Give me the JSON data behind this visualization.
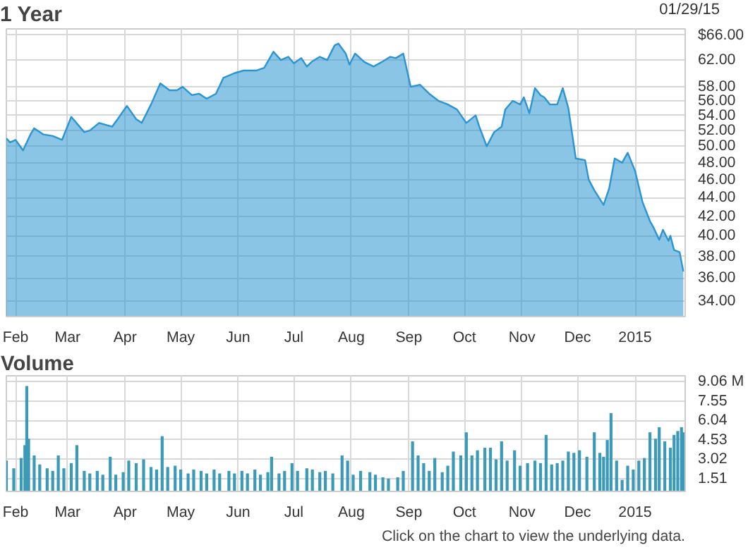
{
  "chart_data": [
    {
      "type": "area",
      "title": "1 Year",
      "annotations": [
        "01/29/15"
      ],
      "log": true,
      "grid": true,
      "color": "#2a95d2",
      "x": [
        "2014-01-27",
        "2014-01-29",
        "2014-02-01",
        "2014-02-05",
        "2014-02-09",
        "2014-02-11",
        "2014-02-16",
        "2014-02-21",
        "2014-02-26",
        "2014-03-03",
        "2014-03-10",
        "2014-03-13",
        "2014-03-18",
        "2014-03-25",
        "2014-03-28",
        "2014-04-02",
        "2014-04-07",
        "2014-04-10",
        "2014-04-15",
        "2014-04-20",
        "2014-04-25",
        "2014-04-29",
        "2014-05-02",
        "2014-05-07",
        "2014-05-11",
        "2014-05-15",
        "2014-05-20",
        "2014-05-24",
        "2014-05-30",
        "2014-06-04",
        "2014-06-11",
        "2014-06-15",
        "2014-06-20",
        "2014-06-24",
        "2014-06-28",
        "2014-07-01",
        "2014-07-05",
        "2014-07-08",
        "2014-07-11",
        "2014-07-15",
        "2014-07-19",
        "2014-07-23",
        "2014-07-25",
        "2014-07-29",
        "2014-07-31",
        "2014-08-03",
        "2014-08-08",
        "2014-08-13",
        "2014-08-18",
        "2014-08-22",
        "2014-08-25",
        "2014-08-29",
        "2014-09-02",
        "2014-09-07",
        "2014-09-12",
        "2014-09-17",
        "2014-09-22",
        "2014-09-27",
        "2014-10-02",
        "2014-10-07",
        "2014-10-09",
        "2014-10-13",
        "2014-10-17",
        "2014-10-21",
        "2014-10-23",
        "2014-10-27",
        "2014-10-31",
        "2014-11-02",
        "2014-11-05",
        "2014-11-08",
        "2014-11-11",
        "2014-11-13",
        "2014-11-16",
        "2014-11-20",
        "2014-11-23",
        "2014-11-26",
        "2014-11-30",
        "2014-12-05",
        "2014-12-07",
        "2014-12-10",
        "2014-12-15",
        "2014-12-18",
        "2014-12-21",
        "2014-12-25",
        "2014-12-28",
        "2015-01-01",
        "2015-01-05",
        "2015-01-09",
        "2015-01-11",
        "2015-01-14",
        "2015-01-16",
        "2015-01-19",
        "2015-01-20",
        "2015-01-22",
        "2015-01-25",
        "2015-01-27"
      ],
      "values": [
        51,
        50.5,
        50.8,
        49.5,
        51.5,
        52.3,
        51.5,
        51.3,
        50.8,
        53.8,
        51.8,
        52,
        53,
        52.5,
        53.5,
        55.3,
        53.5,
        53,
        55.5,
        58.5,
        57.5,
        57.5,
        58,
        56.8,
        57,
        56.3,
        57,
        59.3,
        60,
        60.4,
        60.4,
        60.8,
        63.3,
        62,
        62.5,
        61.5,
        62.3,
        61,
        61.8,
        62.5,
        62,
        64.3,
        64.6,
        63,
        61.3,
        63,
        61.7,
        61,
        61.8,
        62.5,
        62.3,
        63,
        58,
        58.3,
        57,
        56,
        55.5,
        54.8,
        53,
        54,
        52.5,
        50,
        51.8,
        52.5,
        54.8,
        56,
        55.5,
        56.5,
        54.3,
        57.8,
        56.8,
        56.5,
        55.5,
        55.5,
        57.8,
        55,
        48.5,
        48.3,
        46,
        44.8,
        43.2,
        45,
        48.5,
        48,
        49.2,
        47,
        43.5,
        41.5,
        40.8,
        39.6,
        40.6,
        39.5,
        40,
        38.6,
        38.4,
        36.6
      ],
      "xlim": [
        "2014-01-27",
        "2015-01-28"
      ],
      "xticks": [
        {
          "value": "2014-02-01",
          "label": "Feb"
        },
        {
          "value": "2014-03-01",
          "label": "Mar"
        },
        {
          "value": "2014-04-01",
          "label": "Apr"
        },
        {
          "value": "2014-05-01",
          "label": "May"
        },
        {
          "value": "2014-06-01",
          "label": "Jun"
        },
        {
          "value": "2014-07-01",
          "label": "Jul"
        },
        {
          "value": "2014-08-01",
          "label": "Aug"
        },
        {
          "value": "2014-09-01",
          "label": "Sep"
        },
        {
          "value": "2014-10-01",
          "label": "Oct"
        },
        {
          "value": "2014-11-01",
          "label": "Nov"
        },
        {
          "value": "2014-12-01",
          "label": "Dec"
        },
        {
          "value": "2015-01-01",
          "label": "2015"
        }
      ],
      "ylim": [
        32.7,
        67
      ],
      "yticks": [
        {
          "value": 66,
          "label": "$66.00"
        },
        {
          "value": 62,
          "label": "62.00"
        },
        {
          "value": 58,
          "label": "58.00"
        },
        {
          "value": 56,
          "label": "56.00"
        },
        {
          "value": 54,
          "label": "54.00"
        },
        {
          "value": 52,
          "label": "52.00"
        },
        {
          "value": 50,
          "label": "50.00"
        },
        {
          "value": 48,
          "label": "48.00"
        },
        {
          "value": 46,
          "label": "46.00"
        },
        {
          "value": 44,
          "label": "44.00"
        },
        {
          "value": 42,
          "label": "42.00"
        },
        {
          "value": 40,
          "label": "40.00"
        },
        {
          "value": 38,
          "label": "38.00"
        },
        {
          "value": 36,
          "label": "36.00"
        },
        {
          "value": 34,
          "label": "34.00"
        }
      ]
    },
    {
      "type": "bar",
      "title": "Volume",
      "annotations": [
        "Click on the chart to view the underlying data."
      ],
      "grid": true,
      "color": "#3a9ab8",
      "x": [
        "2014-01-27",
        "2014-01-31",
        "2014-02-04",
        "2014-02-06",
        "2014-02-07",
        "2014-02-08",
        "2014-02-11",
        "2014-02-14",
        "2014-02-18",
        "2014-02-21",
        "2014-02-24",
        "2014-02-27",
        "2014-03-03",
        "2014-03-06",
        "2014-03-10",
        "2014-03-13",
        "2014-03-17",
        "2014-03-20",
        "2014-03-24",
        "2014-03-27",
        "2014-03-31",
        "2014-04-03",
        "2014-04-07",
        "2014-04-11",
        "2014-04-15",
        "2014-04-18",
        "2014-04-21",
        "2014-04-24",
        "2014-04-28",
        "2014-05-01",
        "2014-05-05",
        "2014-05-08",
        "2014-05-12",
        "2014-05-15",
        "2014-05-19",
        "2014-05-22",
        "2014-05-27",
        "2014-05-30",
        "2014-06-03",
        "2014-06-06",
        "2014-06-10",
        "2014-06-13",
        "2014-06-17",
        "2014-06-19",
        "2014-06-23",
        "2014-06-26",
        "2014-06-30",
        "2014-07-03",
        "2014-07-08",
        "2014-07-11",
        "2014-07-15",
        "2014-07-18",
        "2014-07-22",
        "2014-07-27",
        "2014-07-30",
        "2014-08-02",
        "2014-08-06",
        "2014-08-11",
        "2014-08-14",
        "2014-08-18",
        "2014-08-21",
        "2014-08-26",
        "2014-08-29",
        "2014-09-03",
        "2014-09-06",
        "2014-09-09",
        "2014-09-12",
        "2014-09-15",
        "2014-09-19",
        "2014-09-22",
        "2014-09-25",
        "2014-09-29",
        "2014-10-02",
        "2014-10-05",
        "2014-10-08",
        "2014-10-12",
        "2014-10-15",
        "2014-10-18",
        "2014-10-21",
        "2014-10-24",
        "2014-10-28",
        "2014-10-31",
        "2014-11-04",
        "2014-11-08",
        "2014-11-11",
        "2014-11-14",
        "2014-11-17",
        "2014-11-20",
        "2014-11-23",
        "2014-11-26",
        "2014-11-29",
        "2014-12-02",
        "2014-12-06",
        "2014-12-10",
        "2014-12-13",
        "2014-12-15",
        "2014-12-17",
        "2014-12-19",
        "2014-12-22",
        "2014-12-25",
        "2014-12-28",
        "2014-12-31",
        "2015-01-03",
        "2015-01-06",
        "2015-01-09",
        "2015-01-12",
        "2015-01-14",
        "2015-01-17",
        "2015-01-20",
        "2015-01-22",
        "2015-01-24",
        "2015-01-26",
        "2015-01-27"
      ],
      "values": [
        2.9,
        2.3,
        3.1,
        4.1,
        8.7,
        4.6,
        3.3,
        2.6,
        2.3,
        2.1,
        3.3,
        2.3,
        2.7,
        4.1,
        2.1,
        1.9,
        2.1,
        1.8,
        3.2,
        1.8,
        2.0,
        2.9,
        2.7,
        3.0,
        2.4,
        2.2,
        4.8,
        2.4,
        2.5,
        2.2,
        1.9,
        2.2,
        2.1,
        1.9,
        2.2,
        1.9,
        2.1,
        1.9,
        2.1,
        1.9,
        2.2,
        1.8,
        2.0,
        3.2,
        1.9,
        2.1,
        2.7,
        2.1,
        2.3,
        2.2,
        2.0,
        2.1,
        1.9,
        3.3,
        2.9,
        1.8,
        2.1,
        2.0,
        1.8,
        1.6,
        1.5,
        1.6,
        2.1,
        4.4,
        3.3,
        2.7,
        2.1,
        3.1,
        2.0,
        2.5,
        3.6,
        3.3,
        5.1,
        3.3,
        3.7,
        3.9,
        3.9,
        3.0,
        4.4,
        2.9,
        3.7,
        2.5,
        2.7,
        2.9,
        2.7,
        4.9,
        2.6,
        2.7,
        2.9,
        3.6,
        3.5,
        3.7,
        3.2,
        5.1,
        3.5,
        3.2,
        4.5,
        6.6,
        2.9,
        1.4,
        2.5,
        2.2,
        2.9,
        3.1,
        5.1,
        4.6,
        5.5,
        4.4,
        3.9,
        4.9,
        5.2,
        5.5,
        5.1
      ],
      "xlim": [
        "2014-01-27",
        "2015-01-28"
      ],
      "xticks": [
        {
          "value": "2014-02-01",
          "label": "Feb"
        },
        {
          "value": "2014-03-01",
          "label": "Mar"
        },
        {
          "value": "2014-04-01",
          "label": "Apr"
        },
        {
          "value": "2014-05-01",
          "label": "May"
        },
        {
          "value": "2014-06-01",
          "label": "Jun"
        },
        {
          "value": "2014-07-01",
          "label": "Jul"
        },
        {
          "value": "2014-08-01",
          "label": "Aug"
        },
        {
          "value": "2014-09-01",
          "label": "Sep"
        },
        {
          "value": "2014-10-01",
          "label": "Oct"
        },
        {
          "value": "2014-11-01",
          "label": "Nov"
        },
        {
          "value": "2014-12-01",
          "label": "Dec"
        },
        {
          "value": "2015-01-01",
          "label": "2015"
        }
      ],
      "ylim": [
        0.5,
        9.5
      ],
      "yticks": [
        {
          "value": 9.06,
          "label": "9.06 M"
        },
        7.55,
        6.04,
        4.53,
        3.02,
        1.51
      ]
    }
  ]
}
